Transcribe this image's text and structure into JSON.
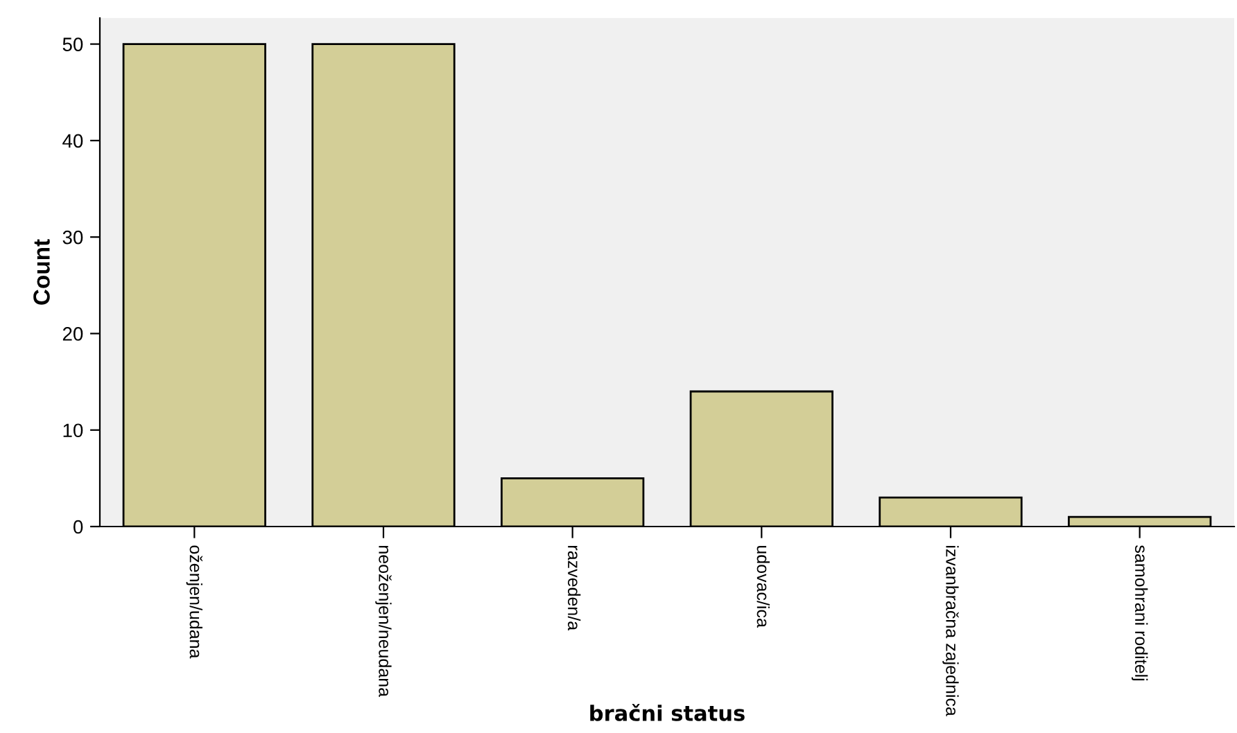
{
  "chart_data": {
    "type": "bar",
    "xlabel": "bračni status",
    "ylabel": "Count",
    "categories": [
      "oženjen/udana",
      "neoženjen/neudana",
      "razveden/a",
      "udovac/ica",
      "izvanbračna zajednica",
      "samohrani roditelj"
    ],
    "values": [
      50,
      50,
      5,
      14,
      3,
      1
    ],
    "color": "#d3ce97",
    "ylim": [
      0,
      52.7
    ],
    "yticks": [
      0,
      10,
      20,
      30,
      40,
      50
    ],
    "grid": false,
    "legend": false
  }
}
